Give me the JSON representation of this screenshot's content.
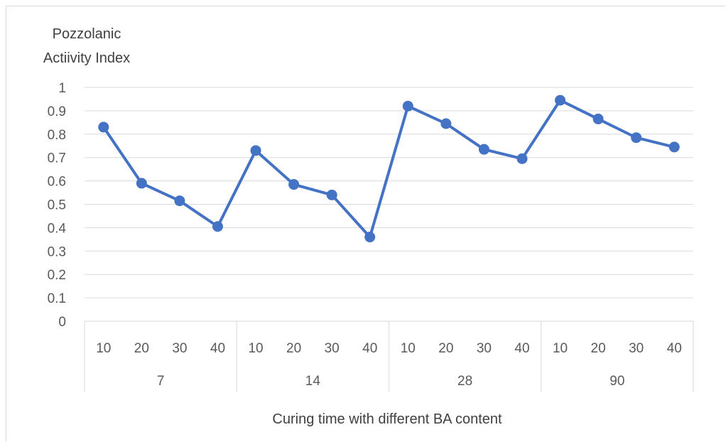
{
  "chart_data": {
    "type": "line",
    "title": "",
    "ylabel": [
      "Pozzolanic",
      "Actiivity Index"
    ],
    "xlabel": "Curing time with different BA content",
    "ylim": [
      0,
      1
    ],
    "yticks": [
      0,
      0.1,
      0.2,
      0.3,
      0.4,
      0.5,
      0.6,
      0.7,
      0.8,
      0.9,
      1
    ],
    "ytick_labels": [
      "0",
      "0.1",
      "0.2",
      "0.3",
      "0.4",
      "0.5",
      "0.6",
      "0.7",
      "0.8",
      "0.9",
      "1"
    ],
    "grid": true,
    "legend": "none",
    "color": "#4472C4",
    "groups": [
      {
        "label": "7",
        "categories": [
          "10",
          "20",
          "30",
          "40"
        ]
      },
      {
        "label": "14",
        "categories": [
          "10",
          "20",
          "30",
          "40"
        ]
      },
      {
        "label": "28",
        "categories": [
          "10",
          "20",
          "30",
          "40"
        ]
      },
      {
        "label": "90",
        "categories": [
          "10",
          "20",
          "30",
          "40"
        ]
      }
    ],
    "series": [
      {
        "values": [
          0.83,
          0.59,
          0.515,
          0.405,
          0.73,
          0.585,
          0.54,
          0.36,
          0.92,
          0.845,
          0.735,
          0.695,
          0.945,
          0.865,
          0.785,
          0.745
        ]
      }
    ]
  }
}
